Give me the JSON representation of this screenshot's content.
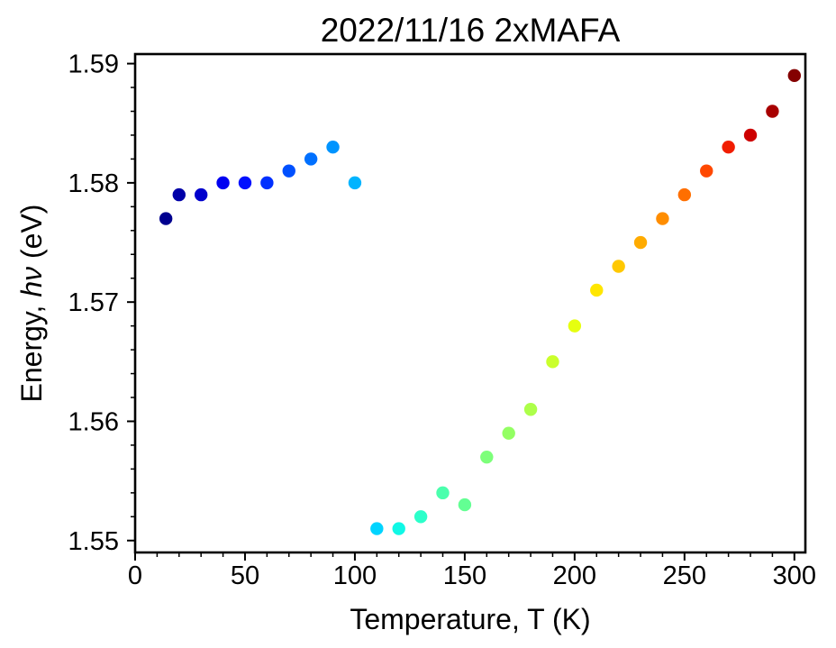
{
  "chart_data": {
    "type": "scatter",
    "title": "2022/11/16 2xMAFA",
    "xlabel": "Temperature, T (K)",
    "ylabel_prefix": "Energy, ",
    "ylabel_symbol": "hν",
    "ylabel_suffix": " (eV)",
    "xlim": [
      0,
      305
    ],
    "ylim": [
      1.549,
      1.5908
    ],
    "x_ticks": [
      0,
      50,
      100,
      150,
      200,
      250,
      300
    ],
    "x_tick_labels": [
      "0",
      "50",
      "100",
      "150",
      "200",
      "250",
      "300"
    ],
    "x_minor_step": 10,
    "y_ticks": [
      1.55,
      1.56,
      1.57,
      1.58,
      1.59
    ],
    "y_tick_labels": [
      "1.55",
      "1.56",
      "1.57",
      "1.58",
      "1.59"
    ],
    "y_minor_step": 0.002,
    "grid": false,
    "colormap": "jet",
    "points": [
      {
        "x": 14,
        "y": 1.577,
        "color": "#00008f"
      },
      {
        "x": 20,
        "y": 1.579,
        "color": "#0000a8"
      },
      {
        "x": 30,
        "y": 1.579,
        "color": "#0000cd"
      },
      {
        "x": 40,
        "y": 1.58,
        "color": "#0000f1"
      },
      {
        "x": 50,
        "y": 1.58,
        "color": "#0010ff"
      },
      {
        "x": 60,
        "y": 1.58,
        "color": "#0030ff"
      },
      {
        "x": 70,
        "y": 1.581,
        "color": "#0050ff"
      },
      {
        "x": 80,
        "y": 1.582,
        "color": "#0070ff"
      },
      {
        "x": 90,
        "y": 1.583,
        "color": "#0094ff"
      },
      {
        "x": 100,
        "y": 1.58,
        "color": "#00b4ff"
      },
      {
        "x": 110,
        "y": 1.551,
        "color": "#00d4ff"
      },
      {
        "x": 120,
        "y": 1.551,
        "color": "#10f8e6"
      },
      {
        "x": 130,
        "y": 1.552,
        "color": "#2cffca"
      },
      {
        "x": 140,
        "y": 1.554,
        "color": "#4affad"
      },
      {
        "x": 150,
        "y": 1.553,
        "color": "#63ff93"
      },
      {
        "x": 160,
        "y": 1.557,
        "color": "#7dff7a"
      },
      {
        "x": 170,
        "y": 1.559,
        "color": "#93ff63"
      },
      {
        "x": 180,
        "y": 1.561,
        "color": "#adff4a"
      },
      {
        "x": 190,
        "y": 1.565,
        "color": "#caff2c"
      },
      {
        "x": 200,
        "y": 1.568,
        "color": "#e6ff10"
      },
      {
        "x": 210,
        "y": 1.571,
        "color": "#ffe600"
      },
      {
        "x": 220,
        "y": 1.573,
        "color": "#ffc800"
      },
      {
        "x": 230,
        "y": 1.575,
        "color": "#ffab00"
      },
      {
        "x": 240,
        "y": 1.577,
        "color": "#ff8d00"
      },
      {
        "x": 250,
        "y": 1.579,
        "color": "#ff6f00"
      },
      {
        "x": 260,
        "y": 1.581,
        "color": "#ff4800"
      },
      {
        "x": 270,
        "y": 1.583,
        "color": "#f11d00"
      },
      {
        "x": 280,
        "y": 1.584,
        "color": "#cd0000"
      },
      {
        "x": 290,
        "y": 1.586,
        "color": "#a80000"
      },
      {
        "x": 300,
        "y": 1.589,
        "color": "#840000"
      }
    ]
  }
}
